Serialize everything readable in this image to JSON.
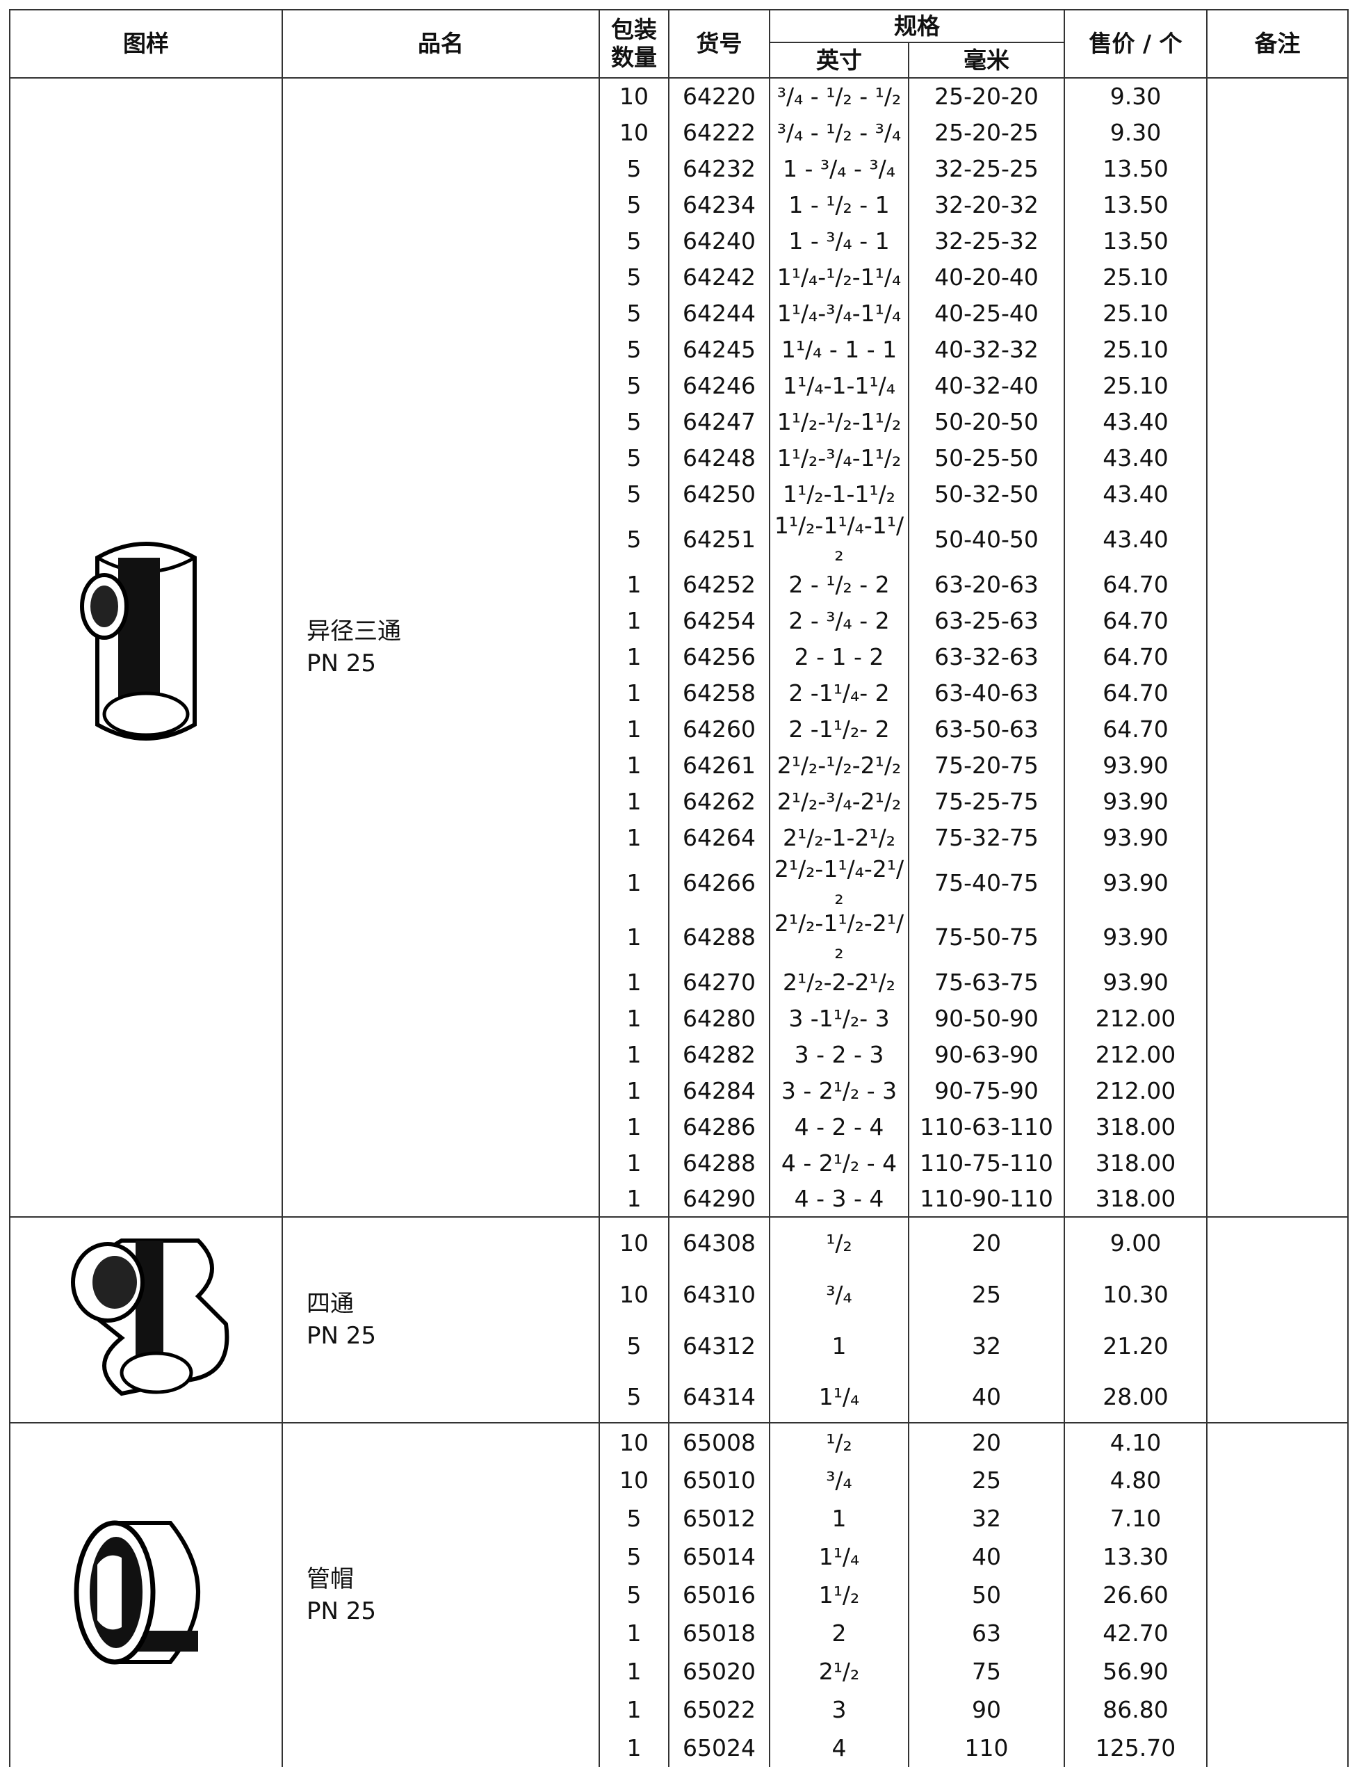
{
  "header": {
    "picture": "图样",
    "name": "品名",
    "pack": "包装\n数量",
    "code": "货号",
    "spec": "规格",
    "inch": "英寸",
    "mm": "毫米",
    "price": "售价 / 个",
    "remark": "备注"
  },
  "sections": [
    {
      "name": "异径三通",
      "rating": "PN 25",
      "rows": [
        [
          "10",
          "64220",
          "³/₄ - ¹/₂ - ¹/₂",
          "25-20-20",
          "9.30"
        ],
        [
          "10",
          "64222",
          "³/₄ - ¹/₂ - ³/₄",
          "25-20-25",
          "9.30"
        ],
        [
          "5",
          "64232",
          "1 - ³/₄ - ³/₄",
          "32-25-25",
          "13.50"
        ],
        [
          "5",
          "64234",
          "1 - ¹/₂ - 1",
          "32-20-32",
          "13.50"
        ],
        [
          "5",
          "64240",
          "1 - ³/₄ - 1",
          "32-25-32",
          "13.50"
        ],
        [
          "5",
          "64242",
          "1¹/₄-¹/₂-1¹/₄",
          "40-20-40",
          "25.10"
        ],
        [
          "5",
          "64244",
          "1¹/₄-³/₄-1¹/₄",
          "40-25-40",
          "25.10"
        ],
        [
          "5",
          "64245",
          "1¹/₄ - 1 - 1",
          "40-32-32",
          "25.10"
        ],
        [
          "5",
          "64246",
          "1¹/₄-1-1¹/₄",
          "40-32-40",
          "25.10"
        ],
        [
          "5",
          "64247",
          "1¹/₂-¹/₂-1¹/₂",
          "50-20-50",
          "43.40"
        ],
        [
          "5",
          "64248",
          "1¹/₂-³/₄-1¹/₂",
          "50-25-50",
          "43.40"
        ],
        [
          "5",
          "64250",
          "1¹/₂-1-1¹/₂",
          "50-32-50",
          "43.40"
        ],
        [
          "5",
          "64251",
          "1¹/₂-1¹/₄-1¹/₂",
          "50-40-50",
          "43.40"
        ],
        [
          "1",
          "64252",
          "2 - ¹/₂ - 2",
          "63-20-63",
          "64.70"
        ],
        [
          "1",
          "64254",
          "2 - ³/₄ - 2",
          "63-25-63",
          "64.70"
        ],
        [
          "1",
          "64256",
          "2 - 1 - 2",
          "63-32-63",
          "64.70"
        ],
        [
          "1",
          "64258",
          "2 -1¹/₄- 2",
          "63-40-63",
          "64.70"
        ],
        [
          "1",
          "64260",
          "2 -1¹/₂- 2",
          "63-50-63",
          "64.70"
        ],
        [
          "1",
          "64261",
          "2¹/₂-¹/₂-2¹/₂",
          "75-20-75",
          "93.90"
        ],
        [
          "1",
          "64262",
          "2¹/₂-³/₄-2¹/₂",
          "75-25-75",
          "93.90"
        ],
        [
          "1",
          "64264",
          "2¹/₂-1-2¹/₂",
          "75-32-75",
          "93.90"
        ],
        [
          "1",
          "64266",
          "2¹/₂-1¹/₄-2¹/₂",
          "75-40-75",
          "93.90"
        ],
        [
          "1",
          "64288",
          "2¹/₂-1¹/₂-2¹/₂",
          "75-50-75",
          "93.90"
        ],
        [
          "1",
          "64270",
          "2¹/₂-2-2¹/₂",
          "75-63-75",
          "93.90"
        ],
        [
          "1",
          "64280",
          "3 -1¹/₂- 3",
          "90-50-90",
          "212.00"
        ],
        [
          "1",
          "64282",
          "3 - 2 - 3",
          "90-63-90",
          "212.00"
        ],
        [
          "1",
          "64284",
          "3 - 2¹/₂ - 3",
          "90-75-90",
          "212.00"
        ],
        [
          "1",
          "64286",
          "4 - 2 - 4",
          "110-63-110",
          "318.00"
        ],
        [
          "1",
          "64288",
          "4 - 2¹/₂ - 4",
          "110-75-110",
          "318.00"
        ],
        [
          "1",
          "64290",
          "4 - 3 - 4",
          "110-90-110",
          "318.00"
        ]
      ]
    },
    {
      "name": "四通",
      "rating": "PN 25",
      "rows": [
        [
          "10",
          "64308",
          "¹/₂",
          "20",
          "9.00"
        ],
        [
          "10",
          "64310",
          "³/₄",
          "25",
          "10.30"
        ],
        [
          "5",
          "64312",
          "1",
          "32",
          "21.20"
        ],
        [
          "5",
          "64314",
          "1¹/₄",
          "40",
          "28.00"
        ]
      ]
    },
    {
      "name": "管帽",
      "rating": "PN 25",
      "rows": [
        [
          "10",
          "65008",
          "¹/₂",
          "20",
          "4.10"
        ],
        [
          "10",
          "65010",
          "³/₄",
          "25",
          "4.80"
        ],
        [
          "5",
          "65012",
          "1",
          "32",
          "7.10"
        ],
        [
          "5",
          "65014",
          "1¹/₄",
          "40",
          "13.30"
        ],
        [
          "5",
          "65016",
          "1¹/₂",
          "50",
          "26.60"
        ],
        [
          "1",
          "65018",
          "2",
          "63",
          "42.70"
        ],
        [
          "1",
          "65020",
          "2¹/₂",
          "75",
          "56.90"
        ],
        [
          "1",
          "65022",
          "3",
          "90",
          "86.80"
        ],
        [
          "1",
          "65024",
          "4",
          "110",
          "125.70"
        ]
      ]
    }
  ]
}
